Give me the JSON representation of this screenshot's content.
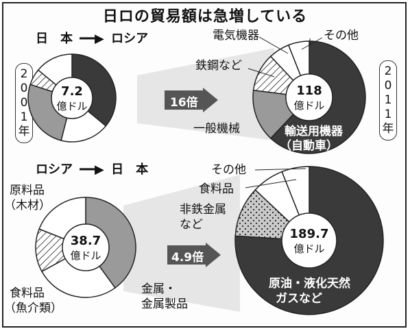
{
  "title": "日ロの貿易額は急増している",
  "direction_top": {
    "from": "日　本",
    "to": "ロシア"
  },
  "direction_bottom": {
    "from": "ロシア",
    "to": "日　本"
  },
  "year_2001": [
    "2",
    "0",
    "0",
    "1",
    "年"
  ],
  "year_2011": [
    "2",
    "0",
    "1",
    "1",
    "年"
  ],
  "multiplier_top": "16倍",
  "multiplier_bottom": "4.9倍",
  "colors": {
    "dark": "#3a3a3a",
    "gray": "#9a9a9a",
    "white": "#ffffff",
    "arrow": "#555555"
  },
  "chart_data": [
    {
      "type": "pie",
      "title": "",
      "total_label": [
        "7.2",
        "億ドル"
      ],
      "year": "2001",
      "direction": "日本→ロシア",
      "series": [
        {
          "name": "輸送用機器（自動車）",
          "value": 0.36,
          "fill": "dark"
        },
        {
          "name": "",
          "value": 0.18,
          "fill": "white"
        },
        {
          "name": "一般機械",
          "value": 0.26,
          "fill": "gray"
        },
        {
          "name": "鉄鋼など",
          "value": 0.06,
          "fill": "hatch"
        },
        {
          "name": "",
          "value": 0.14,
          "fill": "white"
        }
      ]
    },
    {
      "type": "pie",
      "title": "",
      "total_label": [
        "118",
        "億ドル"
      ],
      "year": "2011",
      "direction": "日本→ロシア",
      "series": [
        {
          "name": "輸送用機器（自動車）",
          "value": 0.62,
          "fill": "dark"
        },
        {
          "name": "一般機械",
          "value": 0.15,
          "fill": "gray"
        },
        {
          "name": "鉄鋼など",
          "value": 0.11,
          "fill": "hatch"
        },
        {
          "name": "電気機器",
          "value": 0.06,
          "fill": "white"
        },
        {
          "name": "その他",
          "value": 0.06,
          "fill": "white"
        }
      ]
    },
    {
      "type": "pie",
      "title": "",
      "total_label": [
        "38.7",
        "億ドル"
      ],
      "year": "2001",
      "direction": "ロシア→日本",
      "series": [
        {
          "name": "金属・金属製品",
          "value": 0.4,
          "fill": "gray"
        },
        {
          "name": "食料品（魚介類）",
          "value": 0.27,
          "fill": "white"
        },
        {
          "name": "原料品（木材）",
          "value": 0.14,
          "fill": "hatch"
        },
        {
          "name": "",
          "value": 0.19,
          "fill": "white"
        }
      ]
    },
    {
      "type": "pie",
      "title": "",
      "total_label": [
        "189.7",
        "億ドル"
      ],
      "year": "2011",
      "direction": "ロシア→日本",
      "series": [
        {
          "name": "原油・液化天然ガスなど",
          "value": 0.76,
          "fill": "dark"
        },
        {
          "name": "非鉄金属など",
          "value": 0.11,
          "fill": "dots"
        },
        {
          "name": "食料品",
          "value": 0.07,
          "fill": "white"
        },
        {
          "name": "その他",
          "value": 0.06,
          "fill": "white"
        }
      ]
    }
  ],
  "labels": {
    "p1_dark": "",
    "p2_elec": "電気機器",
    "p2_other": "その他",
    "p2_steel": "鉄鋼など",
    "p2_mach": "一般機械",
    "p2_trans1": "輸送用機器",
    "p2_trans2": "（自動車）",
    "p3_raw1": "原料品",
    "p3_raw2": "（木材）",
    "p3_food1": "食料品",
    "p3_food2": "（魚介類）",
    "p3_metal1": "金属・",
    "p3_metal2": "金属製品",
    "p4_other": "その他",
    "p4_food": "食料品",
    "p4_nonfe1": "非鉄金属",
    "p4_nonfe2": "など",
    "p4_oil1": "原油・液化天然",
    "p4_oil2": "ガスなど"
  }
}
